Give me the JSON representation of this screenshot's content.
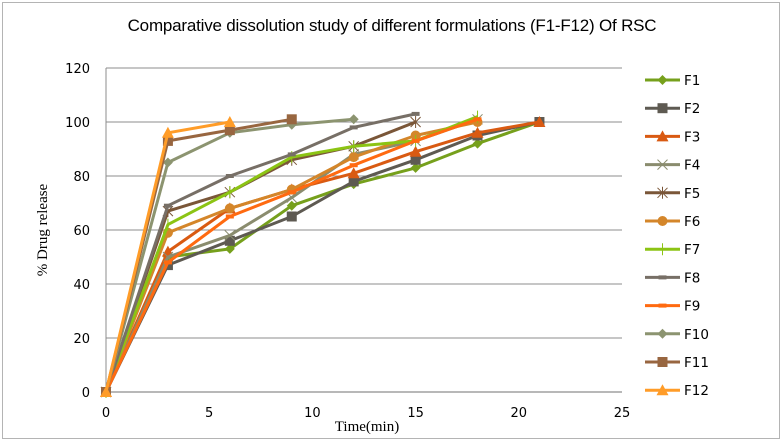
{
  "chart_data": {
    "type": "line",
    "title": "Comparative dissolution study of different formulations  (F1-F12) Of RSC",
    "xlabel": "Time(min)",
    "ylabel": "% Drug release",
    "xlim": [
      0,
      25
    ],
    "ylim": [
      0,
      120
    ],
    "x_ticks": [
      "0",
      "5",
      "10",
      "15",
      "20",
      "25"
    ],
    "y_ticks": [
      "0",
      "20",
      "40",
      "60",
      "80",
      "100",
      "120"
    ],
    "grid": "horizontal",
    "legend_position": "right",
    "series": [
      {
        "name": "F1",
        "color": "#76a01c",
        "marker": "diamond",
        "x": [
          0,
          3,
          6,
          9,
          12,
          15,
          18,
          21
        ],
        "y": [
          0,
          50,
          53,
          69,
          77,
          83,
          92,
          100
        ]
      },
      {
        "name": "F2",
        "color": "#5e5a52",
        "marker": "square",
        "x": [
          0,
          3,
          6,
          9,
          12,
          15,
          18,
          21
        ],
        "y": [
          0,
          47,
          56,
          65,
          78,
          86,
          95,
          100
        ]
      },
      {
        "name": "F3",
        "color": "#d95a12",
        "marker": "triangle",
        "x": [
          0,
          3,
          6,
          9,
          12,
          15,
          18,
          21
        ],
        "y": [
          0,
          52,
          68,
          75,
          81,
          89,
          96,
          100
        ]
      },
      {
        "name": "F4",
        "color": "#8a8c6e",
        "marker": "x",
        "x": [
          0,
          3,
          6,
          9,
          12,
          15,
          18
        ],
        "y": [
          0,
          50,
          58,
          72,
          88,
          93,
          101
        ]
      },
      {
        "name": "F5",
        "color": "#7a5638",
        "marker": "star",
        "x": [
          0,
          3,
          6,
          9,
          12,
          15
        ],
        "y": [
          0,
          67,
          74,
          86,
          91,
          100
        ]
      },
      {
        "name": "F6",
        "color": "#d4862a",
        "marker": "circle",
        "x": [
          0,
          3,
          6,
          9,
          12,
          15,
          18
        ],
        "y": [
          0,
          59,
          68,
          75,
          87,
          95,
          100
        ]
      },
      {
        "name": "F7",
        "color": "#8cc414",
        "marker": "plus",
        "x": [
          0,
          3,
          6,
          9,
          12,
          15,
          18
        ],
        "y": [
          0,
          62,
          74,
          87,
          91,
          93,
          102
        ]
      },
      {
        "name": "F8",
        "color": "#776f66",
        "marker": "dash",
        "x": [
          0,
          3,
          6,
          9,
          12,
          15
        ],
        "y": [
          0,
          69,
          80,
          88,
          98,
          103
        ]
      },
      {
        "name": "F9",
        "color": "#ff6a10",
        "marker": "dash",
        "x": [
          0,
          3,
          6,
          9,
          12,
          15,
          18
        ],
        "y": [
          0,
          48,
          65,
          74,
          84,
          93,
          101
        ]
      },
      {
        "name": "F10",
        "color": "#8c9470",
        "marker": "diamond",
        "x": [
          0,
          3,
          6,
          9,
          12
        ],
        "y": [
          0,
          85,
          96,
          99,
          101
        ]
      },
      {
        "name": "F11",
        "color": "#986640",
        "marker": "square",
        "x": [
          0,
          3,
          6,
          9
        ],
        "y": [
          0,
          93,
          97,
          101
        ]
      },
      {
        "name": "F12",
        "color": "#ff9c28",
        "marker": "triangle",
        "x": [
          0,
          3,
          6
        ],
        "y": [
          0,
          96,
          100
        ]
      }
    ]
  }
}
